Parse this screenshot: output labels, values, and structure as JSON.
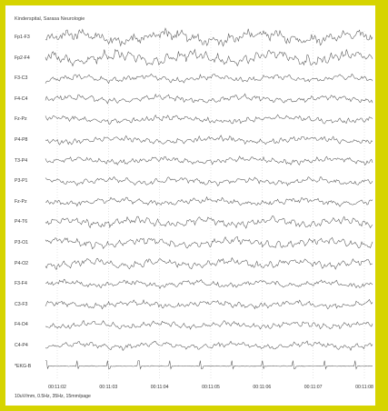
{
  "header": {
    "title": "Kinderspital, Sarasa Neurologie"
  },
  "channels": [
    {
      "label": "Fp1-F3"
    },
    {
      "label": "Fp2-F4"
    },
    {
      "label": "F3-C3"
    },
    {
      "label": "F4-C4"
    },
    {
      "label": "Fz-Pz"
    },
    {
      "label": "P4-P8"
    },
    {
      "label": "T3-P4"
    },
    {
      "label": "P3-P1"
    },
    {
      "label": "Fz-Pz"
    },
    {
      "label": "P4-T6"
    },
    {
      "label": "P3-O1"
    },
    {
      "label": "P4-O2"
    },
    {
      "label": "F3-F4"
    },
    {
      "label": "C3-F3"
    },
    {
      "label": "F4-O4"
    },
    {
      "label": "C4-P4"
    },
    {
      "label": "*EKG-B"
    }
  ],
  "time_axis": {
    "ticks": [
      "00:11:02",
      "00:11:03",
      "00:11:04",
      "00:11:05",
      "00:11:06",
      "00:11:07",
      "00:11:08"
    ]
  },
  "footer": {
    "settings": "10uV/mm, 0.5Hz, 35Hz, 15mm/page"
  },
  "colors": {
    "frame": "#d6d400",
    "trace": "#555555",
    "grid": "#bbbbbb"
  }
}
